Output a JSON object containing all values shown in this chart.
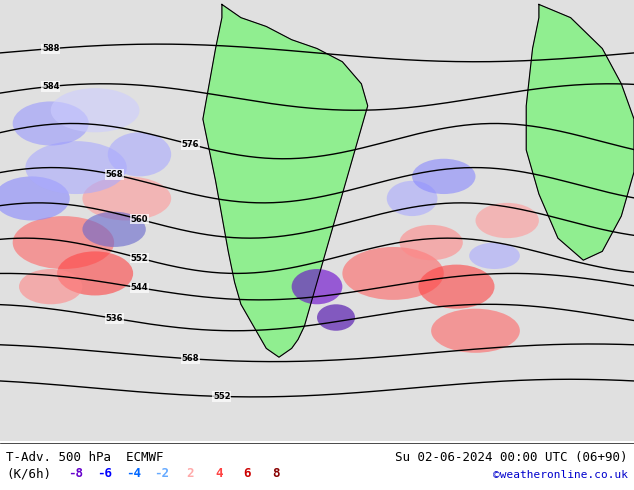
{
  "title_left": "T-Adv. 500 hPa  ECMWF",
  "title_right": "Su 02-06-2024 00:00 UTC (06+90)",
  "legend_label": "(K/6h)",
  "legend_values": [
    -8,
    -6,
    -4,
    -2,
    2,
    4,
    6,
    8
  ],
  "legend_colors": [
    "#6600cc",
    "#0000ff",
    "#0066ff",
    "#66aaff",
    "#ffaaaa",
    "#ff4444",
    "#cc0000",
    "#880000"
  ],
  "watermark": "©weatheronline.co.uk",
  "watermark_color": "#0000cc",
  "bg_color": "#ffffff",
  "map_bg": "#e0e0e0",
  "land_color": "#90ee90",
  "fig_width": 6.34,
  "fig_height": 4.9,
  "dpi": 100,
  "bottom_bar_height": 0.1,
  "title_fontsize": 9,
  "legend_fontsize": 9,
  "watermark_fontsize": 8
}
